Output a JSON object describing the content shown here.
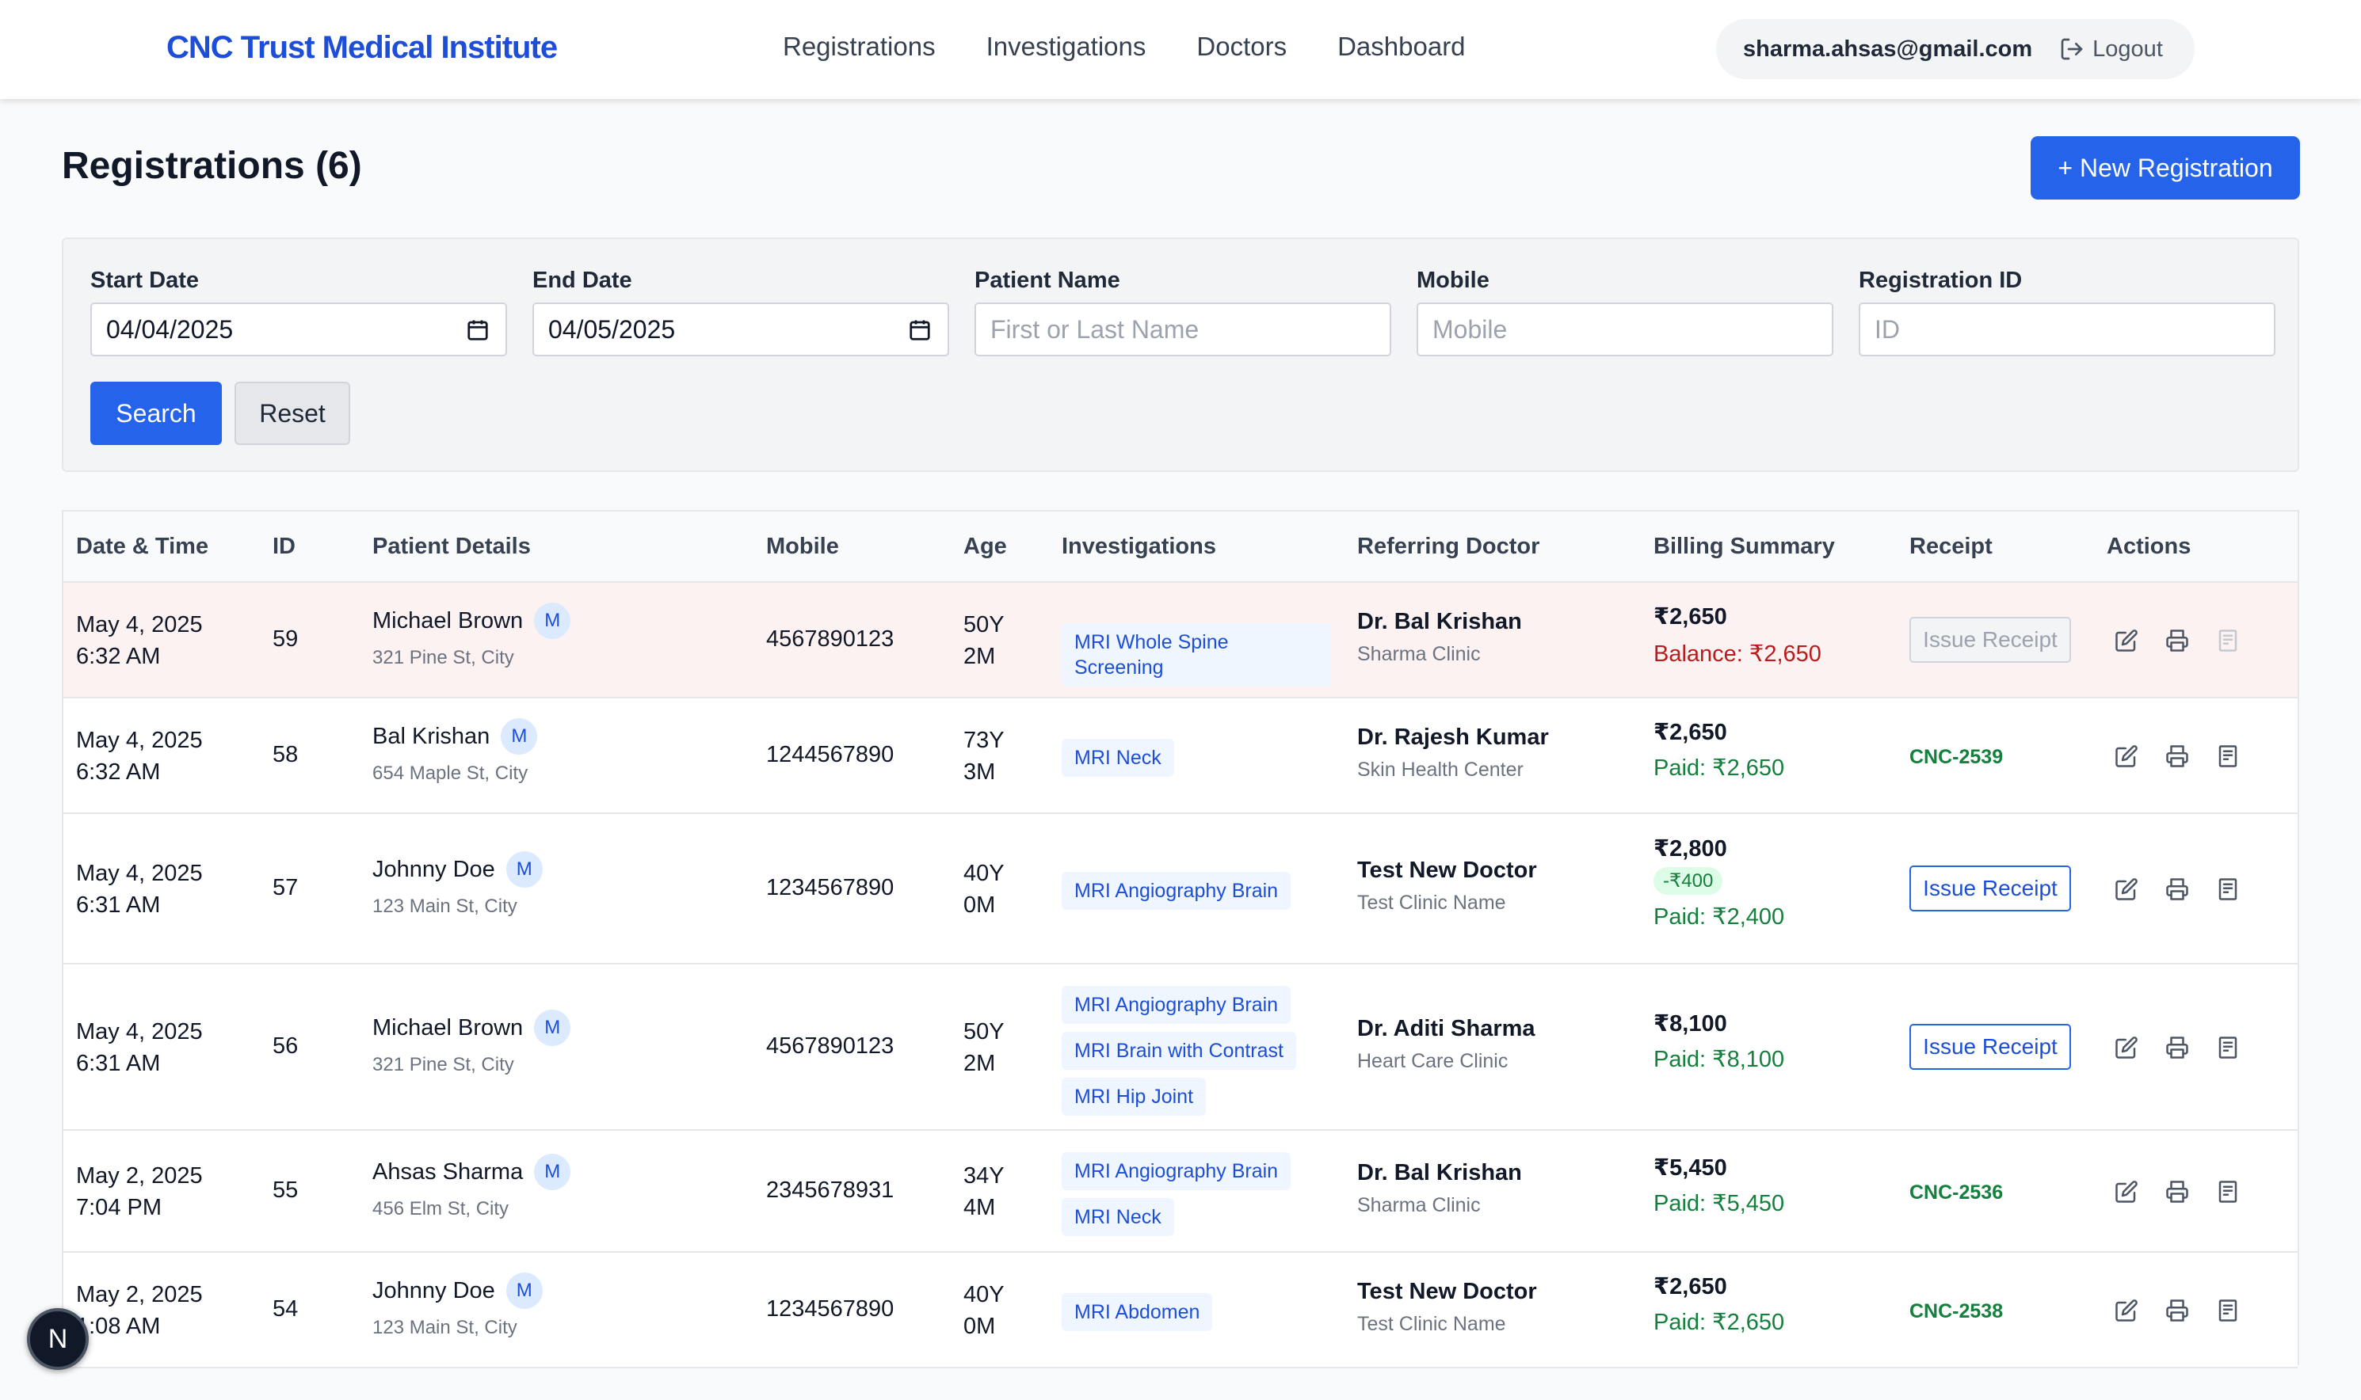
{
  "header": {
    "brand": "CNC Trust Medical Institute",
    "nav": [
      "Registrations",
      "Investigations",
      "Doctors",
      "Dashboard"
    ],
    "user_email": "sharma.ahsas@gmail.com",
    "logout_label": "Logout"
  },
  "page": {
    "title": "Registrations (6)",
    "new_button": "+ New Registration"
  },
  "filters": {
    "start_date": {
      "label": "Start Date",
      "value": "04/04/2025"
    },
    "end_date": {
      "label": "End Date",
      "value": "04/05/2025"
    },
    "patient_name": {
      "label": "Patient Name",
      "placeholder": "First or Last Name"
    },
    "mobile": {
      "label": "Mobile",
      "placeholder": "Mobile"
    },
    "registration_id": {
      "label": "Registration ID",
      "placeholder": "ID"
    },
    "search_label": "Search",
    "reset_label": "Reset"
  },
  "table": {
    "columns": [
      "Date & Time",
      "ID",
      "Patient Details",
      "Mobile",
      "Age",
      "Investigations",
      "Referring Doctor",
      "Billing Summary",
      "Receipt",
      "Actions"
    ],
    "rows": [
      {
        "date": "May 4, 2025",
        "time": "6:32 AM",
        "id": "59",
        "name": "Michael Brown",
        "gender": "M",
        "address": "321 Pine St, City",
        "mobile": "4567890123",
        "age_y": "50Y",
        "age_m": "2M",
        "investigations": [
          "MRI Whole Spine Screening"
        ],
        "doctor": "Dr. Bal Krishan",
        "clinic": "Sharma Clinic",
        "amount": "₹2,650",
        "discount": "",
        "status_text": "Balance: ₹2,650",
        "status": "balance",
        "receipt": "",
        "receipt_button": "Issue Receipt",
        "receipt_state": "disabled",
        "highlight": true
      },
      {
        "date": "May 4, 2025",
        "time": "6:32 AM",
        "id": "58",
        "name": "Bal Krishan",
        "gender": "M",
        "address": "654 Maple St, City",
        "mobile": "1244567890",
        "age_y": "73Y",
        "age_m": "3M",
        "investigations": [
          "MRI Neck"
        ],
        "doctor": "Dr. Rajesh Kumar",
        "clinic": "Skin Health Center",
        "amount": "₹2,650",
        "discount": "",
        "status_text": "Paid: ₹2,650",
        "status": "paid",
        "receipt": "CNC-2539",
        "receipt_button": "",
        "receipt_state": "issued",
        "highlight": false
      },
      {
        "date": "May 4, 2025",
        "time": "6:31 AM",
        "id": "57",
        "name": "Johnny Doe",
        "gender": "M",
        "address": "123 Main St, City",
        "mobile": "1234567890",
        "age_y": "40Y",
        "age_m": "0M",
        "investigations": [
          "MRI Angiography Brain"
        ],
        "doctor": "Test New Doctor",
        "clinic": "Test Clinic Name",
        "amount": "₹2,800",
        "discount": "-₹400",
        "status_text": "Paid: ₹2,400",
        "status": "paid",
        "receipt": "",
        "receipt_button": "Issue Receipt",
        "receipt_state": "active",
        "highlight": false
      },
      {
        "date": "May 4, 2025",
        "time": "6:31 AM",
        "id": "56",
        "name": "Michael Brown",
        "gender": "M",
        "address": "321 Pine St, City",
        "mobile": "4567890123",
        "age_y": "50Y",
        "age_m": "2M",
        "investigations": [
          "MRI Angiography Brain",
          "MRI Brain with Contrast",
          "MRI Hip Joint"
        ],
        "doctor": "Dr. Aditi Sharma",
        "clinic": "Heart Care Clinic",
        "amount": "₹8,100",
        "discount": "",
        "status_text": "Paid: ₹8,100",
        "status": "paid",
        "receipt": "",
        "receipt_button": "Issue Receipt",
        "receipt_state": "active",
        "highlight": false
      },
      {
        "date": "May 2, 2025",
        "time": "7:04 PM",
        "id": "55",
        "name": "Ahsas Sharma",
        "gender": "M",
        "address": "456 Elm St, City",
        "mobile": "2345678931",
        "age_y": "34Y",
        "age_m": "4M",
        "investigations": [
          "MRI Angiography Brain",
          "MRI Neck"
        ],
        "doctor": "Dr. Bal Krishan",
        "clinic": "Sharma Clinic",
        "amount": "₹5,450",
        "discount": "",
        "status_text": "Paid: ₹5,450",
        "status": "paid",
        "receipt": "CNC-2536",
        "receipt_button": "",
        "receipt_state": "issued",
        "highlight": false
      },
      {
        "date": "May 2, 2025",
        "time": "1:08 AM",
        "id": "54",
        "name": "Johnny Doe",
        "gender": "M",
        "address": "123 Main St, City",
        "mobile": "1234567890",
        "age_y": "40Y",
        "age_m": "0M",
        "investigations": [
          "MRI Abdomen"
        ],
        "doctor": "Test New Doctor",
        "clinic": "Test Clinic Name",
        "amount": "₹2,650",
        "discount": "",
        "status_text": "Paid: ₹2,650",
        "status": "paid",
        "receipt": "CNC-2538",
        "receipt_button": "",
        "receipt_state": "issued",
        "highlight": false
      }
    ]
  },
  "fab_label": "N",
  "colors": {
    "primary": "#2563eb",
    "paid": "#15803d",
    "balance": "#b91c1c",
    "highlight_row": "#fdf2f2"
  }
}
